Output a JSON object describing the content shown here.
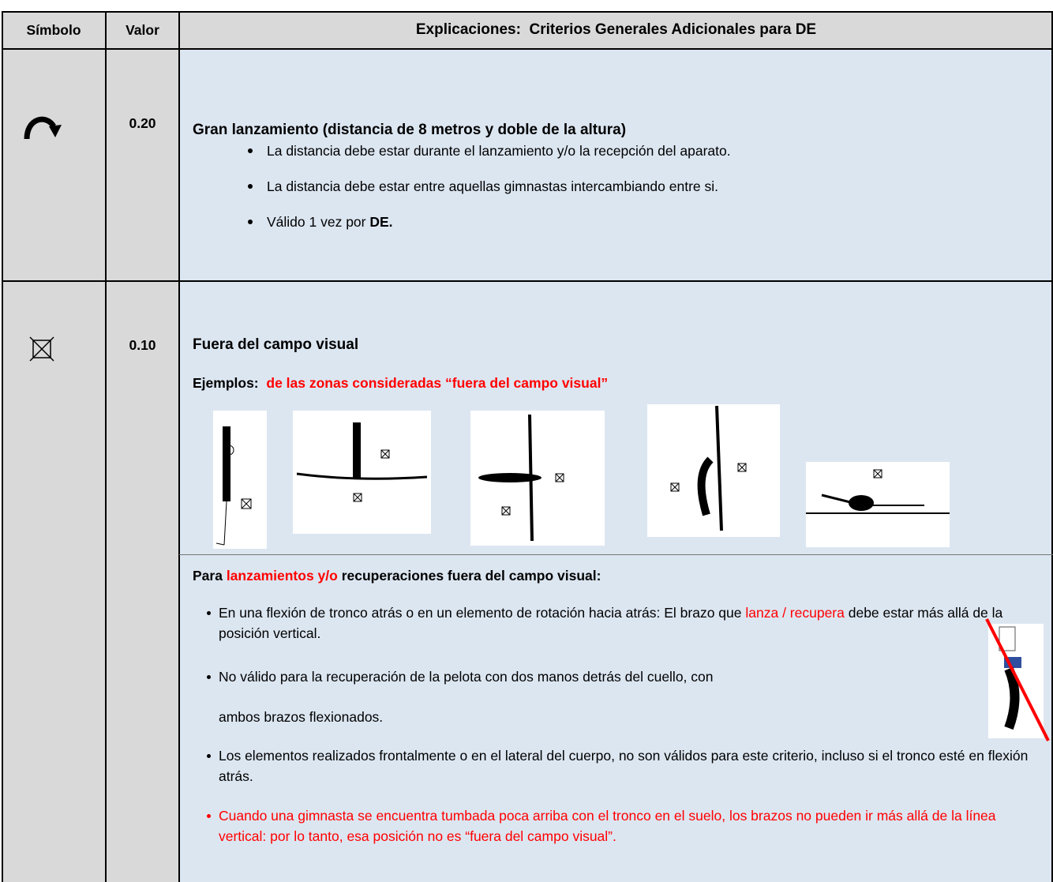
{
  "header": {
    "columns": [
      "Símbolo",
      "Valor",
      "Explicaciones:  Criterios Generales Adicionales para DE"
    ]
  },
  "rows": [
    {
      "value": "0.20",
      "title": "Gran lanzamiento (distancia de 8 metros y doble de la altura)",
      "bullets": [
        [
          "La distancia debe estar durante el lanzamiento y/o la recepción del aparato."
        ],
        [
          "La distancia debe estar entre aquellas gimnastas intercambiando entre si."
        ],
        [
          "Válido 1 vez por ",
          "DE."
        ]
      ]
    },
    {
      "value": "0.10",
      "title": "Fuera del campo visual",
      "examples_label": "Ejemplos:",
      "examples_text": "de las zonas consideradas “fuera del campo visual”",
      "subheading": [
        "Para ",
        "lanzamientos y/o",
        " recuperaciones fuera del campo visual:"
      ],
      "bullets": [
        [
          "En una flexión de tronco atrás o en un elemento de rotación hacia atrás: El brazo que ",
          "lanza / recupera",
          " debe estar más allá de la posición vertical."
        ],
        [
          "No válido para la recuperación de la pelota con dos manos detrás del cuello, con",
          "ambos brazos flexionados."
        ],
        [
          "Los elementos realizados frontalmente o en el lateral del cuerpo, no son válidos para este criterio, incluso si el tronco esté en flexión atrás."
        ],
        [
          "Cuando una gimnasta se encuentra tumbada poca arriba con el tronco en el suelo, los brazos no pueden ir más allá de la línea vertical:  por lo tanto, esa posición no es “fuera del campo visual”."
        ]
      ]
    }
  ]
}
